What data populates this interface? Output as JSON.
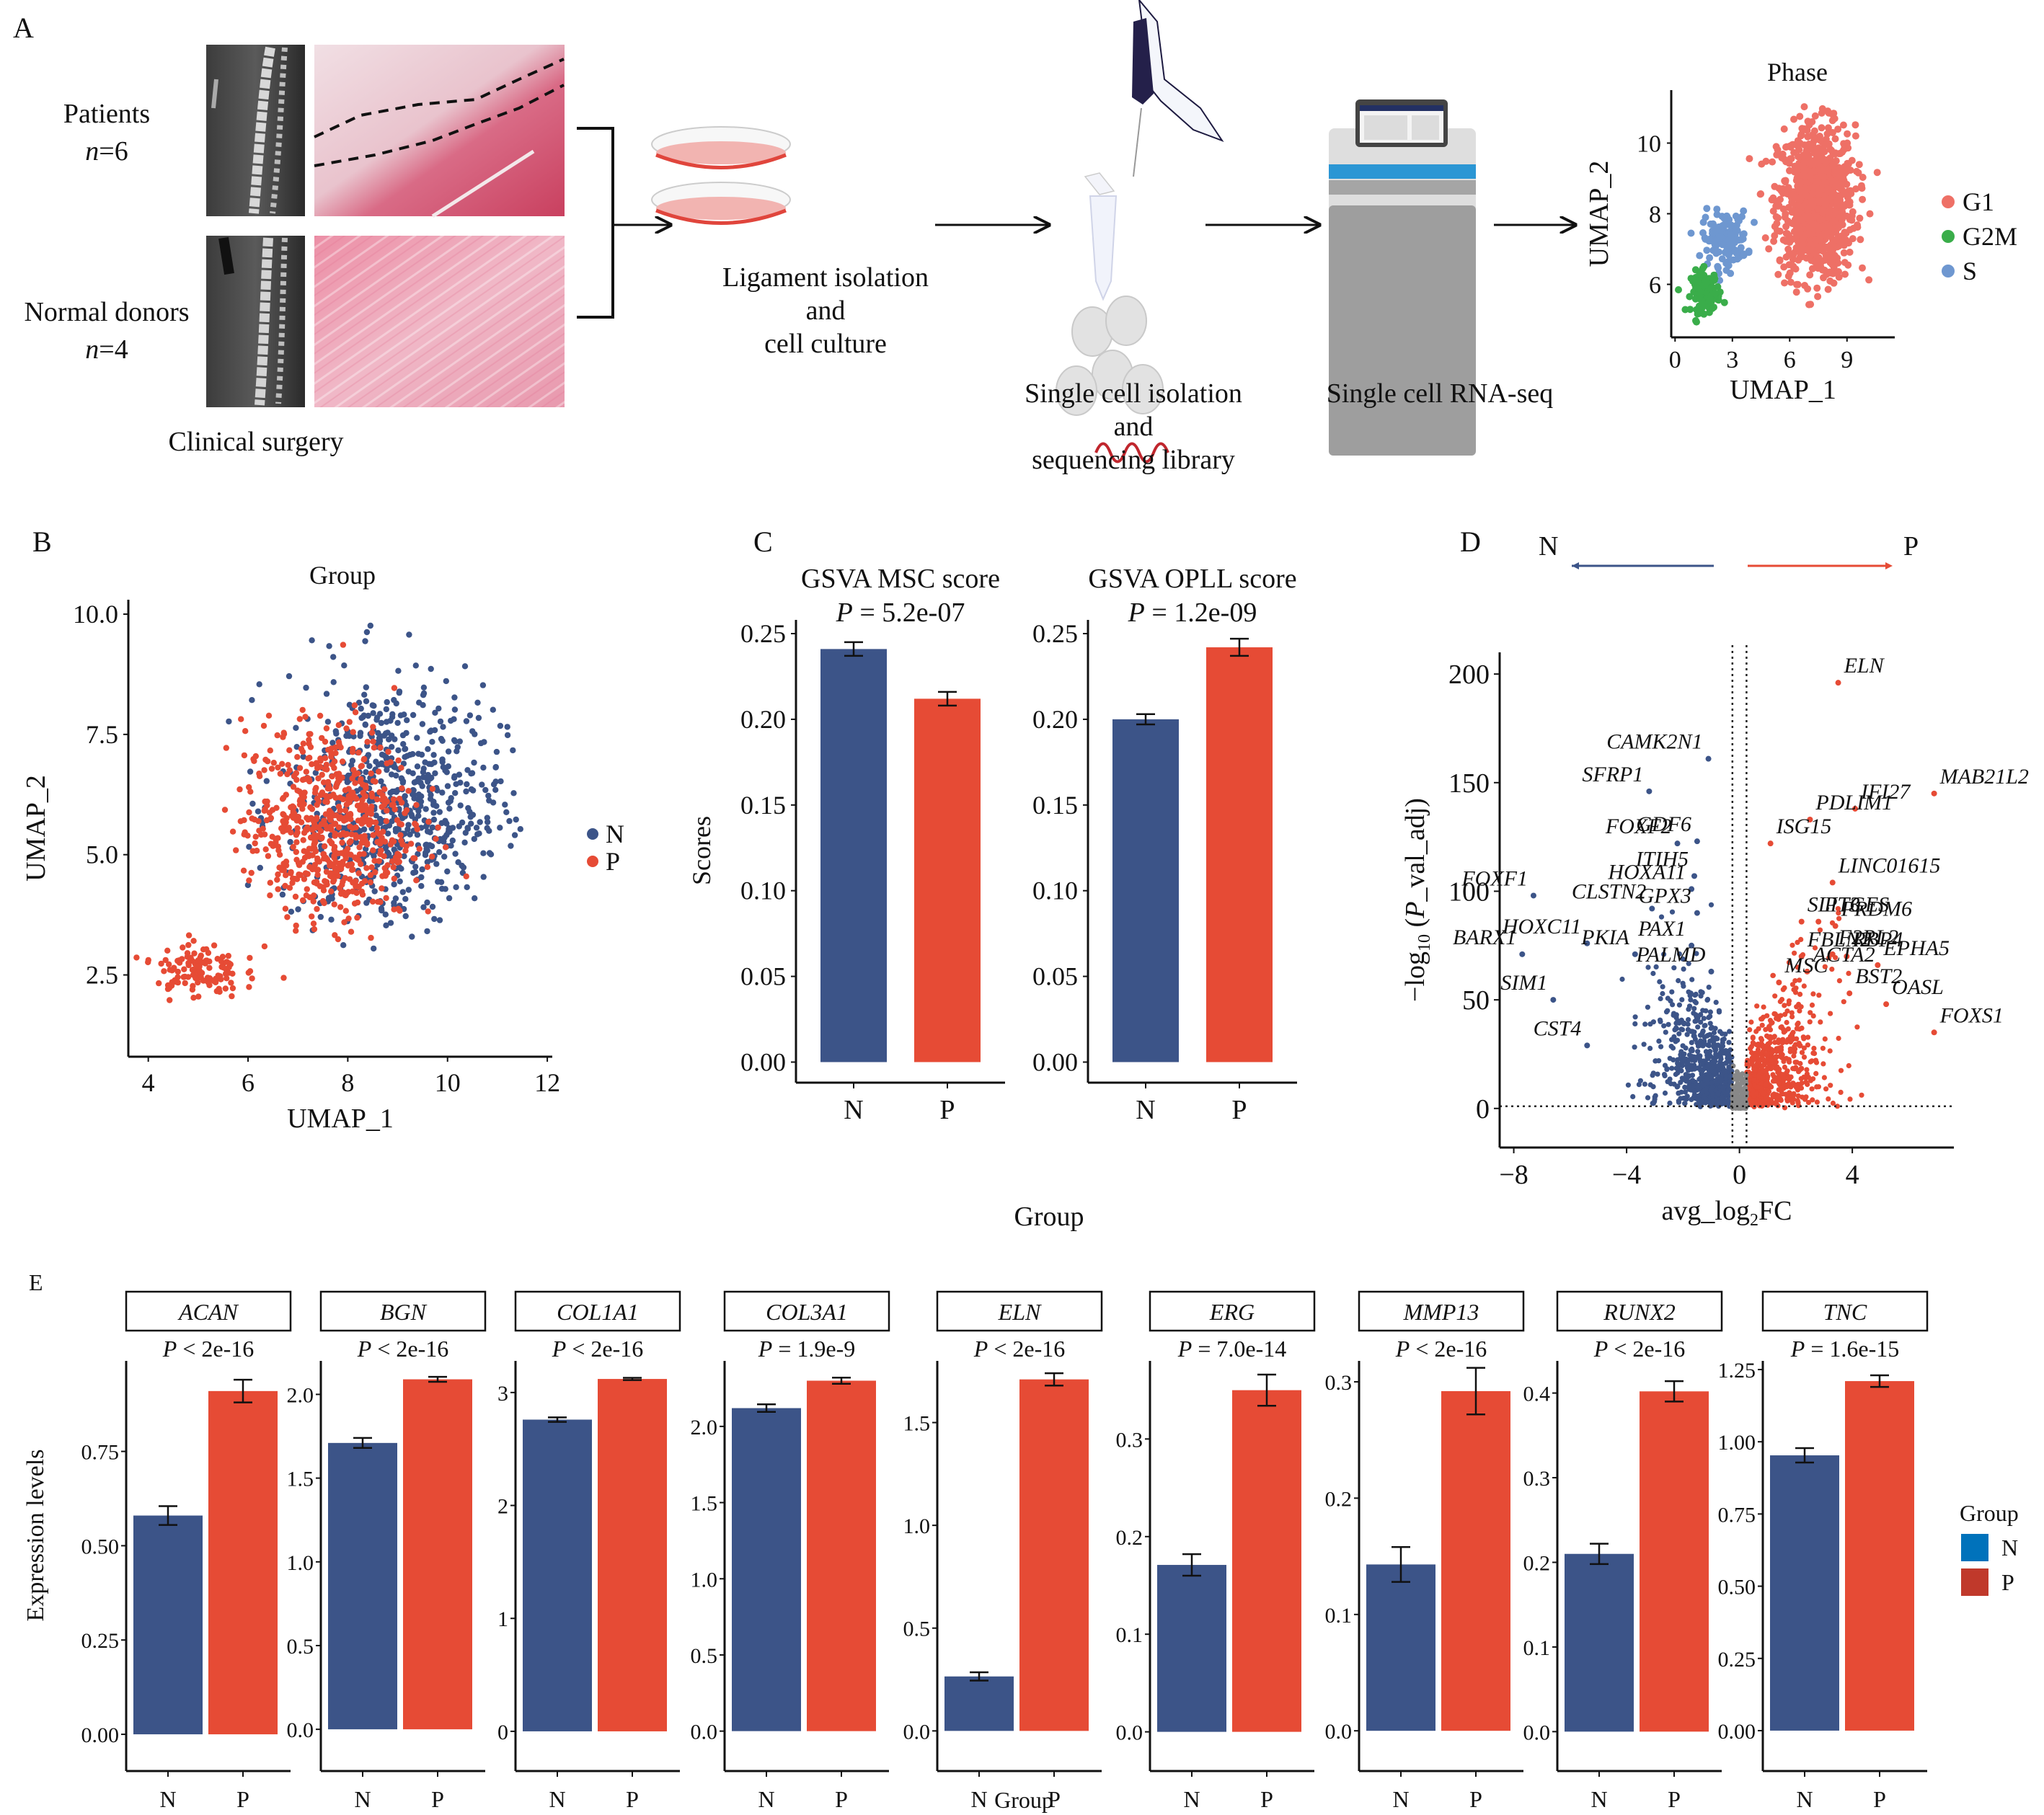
{
  "panel_labels": {
    "a": "A",
    "b": "B",
    "c": "C",
    "d": "D",
    "e": "E"
  },
  "colors": {
    "N": "#3c5488",
    "P": "#e64b35",
    "G1": "#ee7066",
    "G2M": "#3aad4a",
    "S": "#6e97d0",
    "ns": "#888888",
    "legend_N": "#0072bb",
    "legend_P": "#c0392b"
  },
  "panel_a": {
    "patients_label": "Patients",
    "patients_n_var": "n",
    "patients_n_val": "=6",
    "donors_label": "Normal donors",
    "donors_n_var": "n",
    "donors_n_val": "=4",
    "clinical_caption": "Clinical surgery",
    "step1_lines": [
      "Ligament isolation",
      "and",
      "cell culture"
    ],
    "step2_lines": [
      "Single cell isolation",
      "and",
      "sequencing library"
    ],
    "step3_lines": [
      "Single cell RNA-seq"
    ]
  },
  "chart_data": [
    {
      "id": "phase_umap",
      "type": "scatter",
      "title": "Phase",
      "xlabel": "UMAP_1",
      "ylabel": "UMAP_2",
      "xlim": [
        -0.2,
        11.5
      ],
      "ylim": [
        4.5,
        11.5
      ],
      "xticks": [
        0,
        3,
        6,
        9
      ],
      "yticks": [
        6,
        8,
        10
      ],
      "legend": [
        "G1",
        "G2M",
        "S"
      ],
      "legend_position": "right",
      "clusters": [
        {
          "name": "G1",
          "center": [
            7.4,
            8.3
          ],
          "spread": [
            2.4,
            2.6
          ],
          "count": 900
        },
        {
          "name": "S",
          "center": [
            2.6,
            7.3
          ],
          "spread": [
            1.4,
            0.9
          ],
          "count": 130
        },
        {
          "name": "G2M",
          "center": [
            1.6,
            5.8
          ],
          "spread": [
            0.9,
            0.7
          ],
          "count": 110
        }
      ]
    },
    {
      "id": "group_umap",
      "type": "scatter",
      "title": "Group",
      "xlabel": "UMAP_1",
      "ylabel": "UMAP_2",
      "xlim": [
        3.6,
        12.1
      ],
      "ylim": [
        0.8,
        10.3
      ],
      "xticks": [
        4,
        6,
        8,
        10,
        12
      ],
      "yticks": [
        "2.5",
        "5.0",
        "7.5",
        "10.0"
      ],
      "legend": [
        "N",
        "P"
      ],
      "legend_position": "right",
      "clusters": [
        {
          "name": "N",
          "center": [
            8.9,
            6.0
          ],
          "spread": [
            2.6,
            3.3
          ],
          "count": 700
        },
        {
          "name": "P",
          "center": [
            7.6,
            5.6
          ],
          "spread": [
            2.0,
            2.5
          ],
          "count": 650
        },
        {
          "name": "P",
          "center": [
            5.0,
            2.6
          ],
          "spread": [
            1.0,
            0.7
          ],
          "count": 120
        }
      ]
    },
    {
      "id": "gsva_msc",
      "type": "bar",
      "title": "GSVA MSC score",
      "pvalue_var": "P",
      "pvalue_text": " = 5.2e-07",
      "categories": [
        "N",
        "P"
      ],
      "values": [
        0.241,
        0.212
      ],
      "errors": [
        0.004,
        0.004
      ],
      "ylabel": "Scores",
      "xlabel": "Group",
      "ylim": [
        -0.012,
        0.258
      ],
      "yticks": [
        "0.00",
        "0.05",
        "0.10",
        "0.15",
        "0.20",
        "0.25"
      ]
    },
    {
      "id": "gsva_opll",
      "type": "bar",
      "title": "GSVA OPLL score",
      "pvalue_var": "P",
      "pvalue_text": " = 1.2e-09",
      "categories": [
        "N",
        "P"
      ],
      "values": [
        0.2,
        0.242
      ],
      "errors": [
        0.003,
        0.005
      ],
      "ylim": [
        -0.012,
        0.258
      ],
      "yticks": [
        "0.00",
        "0.05",
        "0.10",
        "0.15",
        "0.20",
        "0.25"
      ]
    },
    {
      "id": "volcano",
      "type": "scatter",
      "xlabel": "avg_log2FC",
      "ylabel": "-log10(P_val_adj)",
      "xlim": [
        -8.5,
        7.6
      ],
      "ylim": [
        -18,
        210
      ],
      "xticks": [
        "−8",
        "−4",
        "0",
        "4"
      ],
      "yticks": [
        "0",
        "50",
        "100",
        "150",
        "200"
      ],
      "thresholds": {
        "log2fc": [
          -0.25,
          0.25
        ],
        "p": 1
      },
      "direction_labels": {
        "left": "N",
        "right": "P"
      },
      "labels_N": [
        {
          "gene": "CAMK2N1",
          "x": -1.1,
          "y": 161
        },
        {
          "gene": "SFRP1",
          "x": -3.2,
          "y": 146
        },
        {
          "gene": "FOXF2",
          "x": -2.2,
          "y": 122
        },
        {
          "gene": "GDF6",
          "x": -1.5,
          "y": 123
        },
        {
          "gene": "ITIH5",
          "x": -1.6,
          "y": 107
        },
        {
          "gene": "HOXA11",
          "x": -1.7,
          "y": 101
        },
        {
          "gene": "FOXF1",
          "x": -7.3,
          "y": 98
        },
        {
          "gene": "CLSTN2",
          "x": -3.1,
          "y": 92
        },
        {
          "gene": "GPX3",
          "x": -1.5,
          "y": 90
        },
        {
          "gene": "HOXC11",
          "x": -5.4,
          "y": 76
        },
        {
          "gene": "PKIA",
          "x": -3.7,
          "y": 71
        },
        {
          "gene": "PAX1",
          "x": -1.7,
          "y": 75
        },
        {
          "gene": "BARX1",
          "x": -7.7,
          "y": 71
        },
        {
          "gene": "PALMD",
          "x": -1.0,
          "y": 63
        },
        {
          "gene": "SIM1",
          "x": -6.6,
          "y": 50
        },
        {
          "gene": "CST4",
          "x": -5.4,
          "y": 29
        }
      ],
      "labels_P": [
        {
          "gene": "ELN",
          "x": 3.5,
          "y": 196
        },
        {
          "gene": "MAB21L2",
          "x": 6.9,
          "y": 145
        },
        {
          "gene": "IFI27",
          "x": 4.1,
          "y": 138
        },
        {
          "gene": "PDLIM1",
          "x": 2.5,
          "y": 133
        },
        {
          "gene": "ISG15",
          "x": 1.1,
          "y": 122
        },
        {
          "gene": "LINC01615",
          "x": 3.3,
          "y": 104
        },
        {
          "gene": "PTGES",
          "x": 2.8,
          "y": 86
        },
        {
          "gene": "PRDM6",
          "x": 3.4,
          "y": 84
        },
        {
          "gene": "SLIT3",
          "x": 2.2,
          "y": 86
        },
        {
          "gene": "F2RL2",
          "x": 3.3,
          "y": 71
        },
        {
          "gene": "RBP4",
          "x": 3.8,
          "y": 70
        },
        {
          "gene": "FBLN2",
          "x": 2.2,
          "y": 70
        },
        {
          "gene": "EPHA5",
          "x": 4.9,
          "y": 66
        },
        {
          "gene": "ACTA2",
          "x": 2.4,
          "y": 63
        },
        {
          "gene": "MSC",
          "x": 1.4,
          "y": 58
        },
        {
          "gene": "BST2",
          "x": 3.9,
          "y": 53
        },
        {
          "gene": "OASL",
          "x": 5.2,
          "y": 48
        },
        {
          "gene": "FOXS1",
          "x": 6.9,
          "y": 35
        }
      ]
    },
    {
      "id": "expression_facets",
      "type": "bar",
      "ylabel": "Expression levels",
      "xlabel": "Group",
      "categories": [
        "N",
        "P"
      ],
      "legend_title": "Group",
      "legend": [
        "N",
        "P"
      ],
      "legend_position": "right",
      "facets": [
        {
          "gene": "ACAN",
          "p_op": " < 2e-16",
          "values": [
            0.58,
            0.91
          ],
          "errors": [
            0.025,
            0.03
          ],
          "ylim": [
            -0.04,
            0.99
          ],
          "yticks": [
            "0.00",
            "0.25",
            "0.50",
            "0.75"
          ]
        },
        {
          "gene": "BGN",
          "p_op": " < 2e-16",
          "values": [
            1.71,
            2.09
          ],
          "errors": [
            0.03,
            0.015
          ],
          "ylim": [
            -0.12,
            2.2
          ],
          "yticks": [
            "0.0",
            "0.5",
            "1.0",
            "1.5",
            "2.0"
          ]
        },
        {
          "gene": "COL1A1",
          "p_op": " < 2e-16",
          "values": [
            2.76,
            3.12
          ],
          "errors": [
            0.02,
            0.01
          ],
          "ylim": [
            -0.16,
            3.28
          ],
          "yticks": [
            "0",
            "1",
            "2",
            "3"
          ]
        },
        {
          "gene": "COL3A1",
          "p_op": " = 1.9e-9",
          "values": [
            2.12,
            2.3
          ],
          "errors": [
            0.025,
            0.02
          ],
          "ylim": [
            -0.12,
            2.43
          ],
          "yticks": [
            "0.0",
            "0.5",
            "1.0",
            "1.5",
            "2.0"
          ]
        },
        {
          "gene": "ELN",
          "p_op": " < 2e-16",
          "values": [
            0.265,
            1.71
          ],
          "errors": [
            0.02,
            0.03
          ],
          "ylim": [
            -0.09,
            1.8
          ],
          "yticks": [
            "0.0",
            "0.5",
            "1.0",
            "1.5"
          ]
        },
        {
          "gene": "ERG",
          "p_op": " = 7.0e-14",
          "values": [
            0.171,
            0.35
          ],
          "errors": [
            0.011,
            0.016
          ],
          "ylim": [
            -0.018,
            0.38
          ],
          "yticks": [
            "0.0",
            "0.1",
            "0.2",
            "0.3"
          ]
        },
        {
          "gene": "MMP13",
          "p_op": " < 2e-16",
          "values": [
            0.143,
            0.292
          ],
          "errors": [
            0.015,
            0.02
          ],
          "ylim": [
            -0.016,
            0.318
          ],
          "yticks": [
            "0.0",
            "0.1",
            "0.2",
            "0.3"
          ]
        },
        {
          "gene": "RUNX2",
          "p_op": " < 2e-16",
          "values": [
            0.21,
            0.402
          ],
          "errors": [
            0.012,
            0.012
          ],
          "ylim": [
            -0.021,
            0.438
          ],
          "yticks": [
            "0.0",
            "0.1",
            "0.2",
            "0.3",
            "0.4"
          ]
        },
        {
          "gene": "TNC",
          "p_op": " = 1.6e-15",
          "values": [
            0.953,
            1.21
          ],
          "errors": [
            0.025,
            0.02
          ],
          "ylim": [
            -0.065,
            1.28
          ],
          "yticks": [
            "0.00",
            "0.25",
            "0.50",
            "0.75",
            "1.00",
            "1.25"
          ]
        }
      ]
    }
  ]
}
